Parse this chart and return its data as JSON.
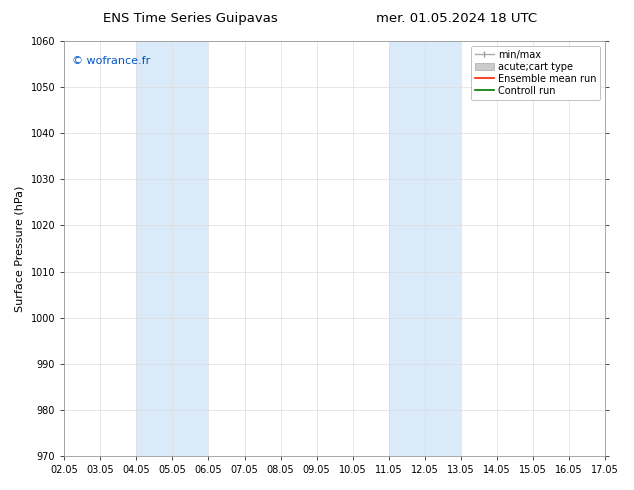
{
  "title_left": "ENS Time Series Guipavas",
  "title_right": "mer. 01.05.2024 18 UTC",
  "ylabel": "Surface Pressure (hPa)",
  "ylim": [
    970,
    1060
  ],
  "yticks": [
    970,
    980,
    990,
    1000,
    1010,
    1020,
    1030,
    1040,
    1050,
    1060
  ],
  "xtick_labels": [
    "02.05",
    "03.05",
    "04.05",
    "05.05",
    "06.05",
    "07.05",
    "08.05",
    "09.05",
    "10.05",
    "11.05",
    "12.05",
    "13.05",
    "14.05",
    "15.05",
    "16.05",
    "17.05"
  ],
  "xtick_positions": [
    0,
    1,
    2,
    3,
    4,
    5,
    6,
    7,
    8,
    9,
    10,
    11,
    12,
    13,
    14,
    15
  ],
  "shaded_bands": [
    {
      "xstart": 2,
      "xend": 4,
      "color": "#daeaf8"
    },
    {
      "xstart": 9,
      "xend": 11,
      "color": "#daeaf8"
    }
  ],
  "watermark": "© wofrance.fr",
  "watermark_color": "#0055cc",
  "background_color": "#ffffff",
  "plot_bg_color": "#ffffff",
  "grid_color": "#dddddd",
  "title_fontsize": 9.5,
  "axis_label_fontsize": 8,
  "tick_fontsize": 7,
  "legend_fontsize": 7,
  "watermark_fontsize": 8
}
